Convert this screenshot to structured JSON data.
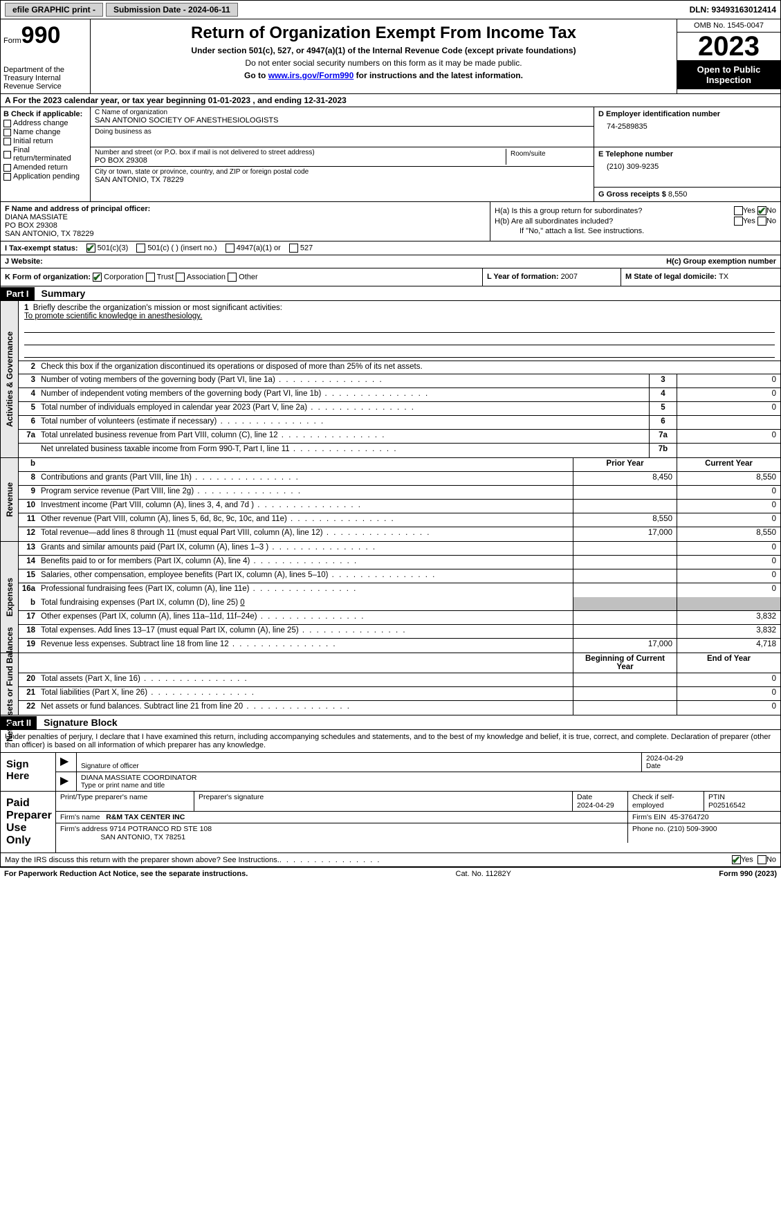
{
  "topbar": {
    "efile": "efile GRAPHIC print -",
    "submission": "Submission Date - 2024-06-11",
    "dln": "DLN: 93493163012414"
  },
  "header": {
    "form_word": "Form",
    "form_num": "990",
    "dept": "Department of the Treasury Internal Revenue Service",
    "title": "Return of Organization Exempt From Income Tax",
    "sub1": "Under section 501(c), 527, or 4947(a)(1) of the Internal Revenue Code (except private foundations)",
    "sub2": "Do not enter social security numbers on this form as it may be made public.",
    "sub3_pre": "Go to ",
    "sub3_link": "www.irs.gov/Form990",
    "sub3_post": " for instructions and the latest information.",
    "omb": "OMB No. 1545-0047",
    "year": "2023",
    "pub": "Open to Public Inspection"
  },
  "period": {
    "a_pre": "A For the 2023 calendar year, or tax year beginning ",
    "begin": "01-01-2023",
    "mid": "   , and ending ",
    "end": "12-31-2023"
  },
  "boxB": {
    "header": "B Check if applicable:",
    "items": [
      "Address change",
      "Name change",
      "Initial return",
      "Final return/terminated",
      "Amended return",
      "Application pending"
    ]
  },
  "boxC": {
    "name_lbl": "C Name of organization",
    "name": "SAN ANTONIO SOCIETY OF ANESTHESIOLOGISTS",
    "dba_lbl": "Doing business as",
    "dba": "",
    "street_lbl": "Number and street (or P.O. box if mail is not delivered to street address)",
    "street": "PO BOX 29308",
    "room_lbl": "Room/suite",
    "city_lbl": "City or town, state or province, country, and ZIP or foreign postal code",
    "city": "SAN ANTONIO, TX  78229"
  },
  "boxD": {
    "lbl": "D Employer identification number",
    "val": "74-2589835"
  },
  "boxE": {
    "lbl": "E Telephone number",
    "val": "(210) 309-9235"
  },
  "boxG": {
    "lbl": "G Gross receipts $ ",
    "val": "8,550"
  },
  "boxF": {
    "lbl": "F  Name and address of principal officer:",
    "l1": "DIANA MASSIATE",
    "l2": "PO BOX 29308",
    "l3": "SAN ANTONIO, TX  78229"
  },
  "boxH": {
    "a": "H(a)  Is this a group return for subordinates?",
    "b": "H(b)  Are all subordinates included?",
    "b2": "If \"No,\" attach a list. See instructions.",
    "c": "H(c)  Group exemption number"
  },
  "boxI": {
    "lbl": "I   Tax-exempt status:",
    "o1": "501(c)(3)",
    "o2": "501(c) (  ) (insert no.)",
    "o3": "4947(a)(1) or",
    "o4": "527"
  },
  "boxJ": {
    "lbl": "J   Website:",
    "val": ""
  },
  "boxK": {
    "lbl": "K Form of organization:",
    "o1": "Corporation",
    "o2": "Trust",
    "o3": "Association",
    "o4": "Other"
  },
  "boxL": {
    "lbl": "L Year of formation: ",
    "val": "2007"
  },
  "boxM": {
    "lbl": "M State of legal domicile: ",
    "val": "TX"
  },
  "parts": {
    "p1": "Part I",
    "p1t": "Summary",
    "p2": "Part II",
    "p2t": "Signature Block"
  },
  "vtabs": {
    "ag": "Activities & Governance",
    "rev": "Revenue",
    "exp": "Expenses",
    "na": "Net Assets or Fund Balances"
  },
  "mission": {
    "lbl": "Briefly describe the organization's mission or most significant activities:",
    "txt": "To promote scientific knowledge in anesthesiology."
  },
  "l2": "Check this box       if the organization discontinued its operations or disposed of more than 25% of its net assets.",
  "lines_ag": [
    {
      "n": "3",
      "t": "Number of voting members of the governing body (Part VI, line 1a)",
      "c": "3",
      "v": "0"
    },
    {
      "n": "4",
      "t": "Number of independent voting members of the governing body (Part VI, line 1b)",
      "c": "4",
      "v": "0"
    },
    {
      "n": "5",
      "t": "Total number of individuals employed in calendar year 2023 (Part V, line 2a)",
      "c": "5",
      "v": "0"
    },
    {
      "n": "6",
      "t": "Total number of volunteers (estimate if necessary)",
      "c": "6",
      "v": ""
    },
    {
      "n": "7a",
      "t": "Total unrelated business revenue from Part VIII, column (C), line 12",
      "c": "7a",
      "v": "0"
    },
    {
      "n": "",
      "t": "Net unrelated business taxable income from Form 990-T, Part I, line 11",
      "c": "7b",
      "v": ""
    }
  ],
  "colhdrs": {
    "b": "b",
    "prior": "Prior Year",
    "current": "Current Year",
    "begin": "Beginning of Current Year",
    "end": "End of Year"
  },
  "lines_rev": [
    {
      "n": "8",
      "t": "Contributions and grants (Part VIII, line 1h)",
      "p": "8,450",
      "c": "8,550"
    },
    {
      "n": "9",
      "t": "Program service revenue (Part VIII, line 2g)",
      "p": "",
      "c": "0"
    },
    {
      "n": "10",
      "t": "Investment income (Part VIII, column (A), lines 3, 4, and 7d )",
      "p": "",
      "c": "0"
    },
    {
      "n": "11",
      "t": "Other revenue (Part VIII, column (A), lines 5, 6d, 8c, 9c, 10c, and 11e)",
      "p": "8,550",
      "c": "0"
    },
    {
      "n": "12",
      "t": "Total revenue—add lines 8 through 11 (must equal Part VIII, column (A), line 12)",
      "p": "17,000",
      "c": "8,550"
    }
  ],
  "lines_exp": [
    {
      "n": "13",
      "t": "Grants and similar amounts paid (Part IX, column (A), lines 1–3 )",
      "p": "",
      "c": "0"
    },
    {
      "n": "14",
      "t": "Benefits paid to or for members (Part IX, column (A), line 4)",
      "p": "",
      "c": "0"
    },
    {
      "n": "15",
      "t": "Salaries, other compensation, employee benefits (Part IX, column (A), lines 5–10)",
      "p": "",
      "c": "0"
    },
    {
      "n": "16a",
      "t": "Professional fundraising fees (Part IX, column (A), line 11e)",
      "p": "",
      "c": "0"
    }
  ],
  "l16b": {
    "n": "b",
    "t": "Total fundraising expenses (Part IX, column (D), line 25) ",
    "v": "0"
  },
  "lines_exp2": [
    {
      "n": "17",
      "t": "Other expenses (Part IX, column (A), lines 11a–11d, 11f–24e)",
      "p": "",
      "c": "3,832"
    },
    {
      "n": "18",
      "t": "Total expenses. Add lines 13–17 (must equal Part IX, column (A), line 25)",
      "p": "",
      "c": "3,832"
    },
    {
      "n": "19",
      "t": "Revenue less expenses. Subtract line 18 from line 12",
      "p": "17,000",
      "c": "4,718"
    }
  ],
  "lines_na": [
    {
      "n": "20",
      "t": "Total assets (Part X, line 16)",
      "p": "",
      "c": "0"
    },
    {
      "n": "21",
      "t": "Total liabilities (Part X, line 26)",
      "p": "",
      "c": "0"
    },
    {
      "n": "22",
      "t": "Net assets or fund balances. Subtract line 21 from line 20",
      "p": "",
      "c": "0"
    }
  ],
  "penalties": "Under penalties of perjury, I declare that I have examined this return, including accompanying schedules and statements, and to the best of my knowledge and belief, it is true, correct, and complete. Declaration of preparer (other than officer) is based on all information of which preparer has any knowledge.",
  "sign": {
    "here": "Sign Here",
    "sig_lbl": "Signature of officer",
    "date_lbl": "Date",
    "date": "2024-04-29",
    "name": "DIANA MASSIATE  COORDINATOR",
    "type_lbl": "Type or print name and title"
  },
  "paid": {
    "lbl": "Paid Preparer Use Only",
    "print_lbl": "Print/Type preparer's name",
    "sig_lbl": "Preparer's signature",
    "date_lbl": "Date",
    "date": "2024-04-29",
    "check_lbl": "Check       if self-employed",
    "ptin_lbl": "PTIN",
    "ptin": "P02516542",
    "firm_name_lbl": "Firm's name",
    "firm_name": "R&M TAX CENTER INC",
    "firm_ein_lbl": "Firm's EIN",
    "firm_ein": "45-3764720",
    "firm_addr_lbl": "Firm's address",
    "firm_addr": "9714 POTRANCO RD STE 108",
    "firm_addr2": "SAN ANTONIO, TX  78251",
    "phone_lbl": "Phone no.",
    "phone": "(210) 509-3900"
  },
  "discuss": "May the IRS discuss this return with the preparer shown above? See Instructions.",
  "footer": {
    "l": "For Paperwork Reduction Act Notice, see the separate instructions.",
    "c": "Cat. No. 11282Y",
    "r": "Form 990 (2023)"
  },
  "yn": {
    "yes": "Yes",
    "no": "No"
  }
}
